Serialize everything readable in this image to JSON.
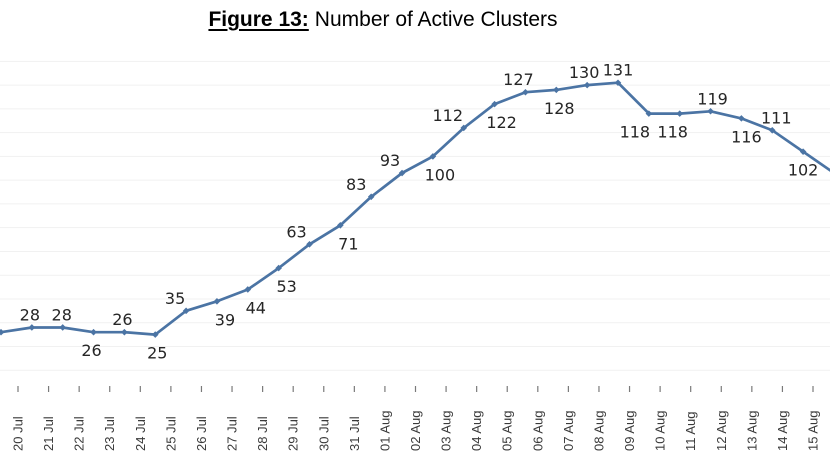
{
  "title": {
    "prefix": "Figure 13:",
    "text": "Number of Active Clusters"
  },
  "chart_data": {
    "type": "line",
    "title": "Figure 13: Number of Active Clusters",
    "xlabel": "",
    "ylabel": "",
    "ylim": [
      0,
      150
    ],
    "grid": "horizontal, every 10 units, full width, very faint",
    "legend": "none",
    "marker": "diamond",
    "line_exits_right_edge": true,
    "first_point_label_cropped_at_left_edge": true,
    "categories": [
      "20 Jul",
      "21 Jul",
      "22 Jul",
      "23 Jul",
      "24 Jul",
      "25 Jul",
      "26 Jul",
      "27 Jul",
      "28 Jul",
      "29 Jul",
      "30 Jul",
      "31 Jul",
      "01 Aug",
      "02 Aug",
      "03 Aug",
      "04 Aug",
      "05 Aug",
      "06 Aug",
      "07 Aug",
      "08 Aug",
      "09 Aug",
      "10 Aug",
      "11 Aug",
      "12 Aug",
      "13 Aug",
      "14 Aug",
      "15 Aug"
    ],
    "values": [
      26,
      28,
      28,
      26,
      26,
      25,
      35,
      39,
      44,
      53,
      63,
      71,
      83,
      93,
      100,
      112,
      122,
      127,
      128,
      130,
      131,
      118,
      118,
      119,
      116,
      111,
      102
    ],
    "labels": [
      "",
      "28",
      "28",
      "26",
      "26",
      "25",
      "35",
      "39",
      "44",
      "53",
      "63",
      "71",
      "83",
      "93",
      "100",
      "112",
      "122",
      "127",
      "128",
      "130",
      "131",
      "118",
      "118",
      "119",
      "116",
      "111",
      "102"
    ],
    "label_side": [
      "",
      "above",
      "above",
      "below",
      "above",
      "below",
      "above",
      "below",
      "below",
      "below",
      "above",
      "below",
      "above",
      "above",
      "below",
      "above",
      "below",
      "above",
      "below",
      "above",
      "above",
      "below",
      "below",
      "above",
      "below",
      "above",
      "below"
    ],
    "label_dx": [
      0,
      -2,
      -1,
      -2,
      -2,
      2,
      -11,
      8,
      8,
      8,
      -13,
      8,
      -15,
      -12,
      7,
      -16,
      7,
      -7,
      3,
      -3,
      0,
      -14,
      -7,
      2,
      5,
      4,
      0
    ],
    "colors": {
      "line": "#4b74a4",
      "marker": "#4b74a4",
      "data_label": "#262626",
      "axis_label": "#3a3a3a",
      "gridline": "#f1f1f1",
      "tick": "#7a7a7a",
      "title": "#000000",
      "background": "#ffffff"
    }
  }
}
